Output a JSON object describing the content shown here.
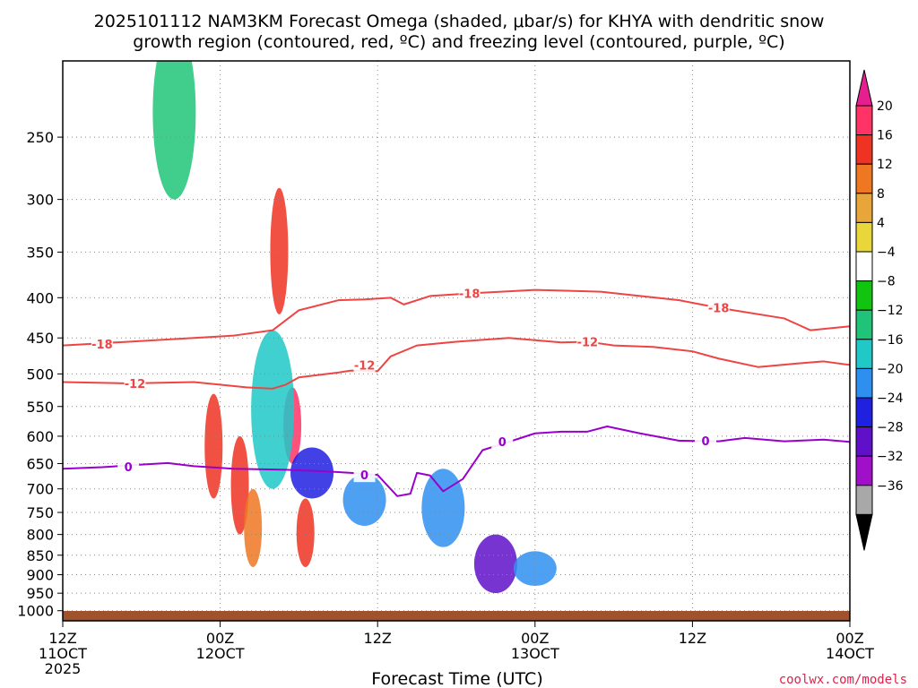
{
  "title": {
    "line1": "2025101112 NAM3KM Forecast Omega (shaded, μbar/s) for KHYA with dendritic snow",
    "line2": "growth region (contoured, red, ºC) and freezing level (contoured, purple, ºC)"
  },
  "credit": "coolwx.com/models",
  "colors": {
    "terrain": "#a0522d",
    "dgz_contour": "#ee4444",
    "freezing_contour": "#9900cc",
    "grid": "#888888"
  },
  "chart_data": {
    "type": "heatmap",
    "title": "2025101112 NAM3KM Forecast Omega (shaded, μbar/s) for KHYA with dendritic snow growth region (contoured, red, ºC) and freezing level (contoured, purple, ºC)",
    "xlabel": "Forecast Time (UTC)",
    "ylabel": "",
    "x_axis": {
      "hours_from_start": [
        0,
        12,
        24,
        36,
        48,
        60
      ],
      "tick_labels": [
        [
          "12Z",
          "11OCT",
          "2025"
        ],
        [
          "00Z",
          "12OCT"
        ],
        [
          "12Z"
        ],
        [
          "00Z",
          "13OCT"
        ],
        [
          "12Z"
        ],
        [
          "00Z",
          "14OCT"
        ]
      ],
      "range_hours": [
        0,
        60
      ]
    },
    "y_axis": {
      "unit": "hPa",
      "scale": "log-pressure",
      "range": [
        1030,
        200
      ],
      "ticks": [
        250,
        300,
        350,
        400,
        450,
        500,
        550,
        600,
        650,
        700,
        750,
        800,
        850,
        900,
        950,
        1000
      ]
    },
    "grid": true,
    "colorbar": {
      "levels": [
        20,
        16,
        12,
        8,
        4,
        -4,
        -8,
        -12,
        -16,
        -20,
        -24,
        -28,
        -32,
        -36
      ],
      "colors": [
        "#ff3366",
        "#ee3322",
        "#ee7722",
        "#e8a63a",
        "#e8d63a",
        "#ffffff",
        "#10c410",
        "#20c478",
        "#20c8c8",
        "#2e8ff0",
        "#2020e0",
        "#6010c8",
        "#a010c8",
        "#a8a8a8",
        "#000000"
      ],
      "ends": {
        "top": "#e61f8f",
        "bottom": "#000000"
      },
      "labels": [
        "20",
        "16",
        "12",
        "8",
        "4",
        "−4",
        "−8",
        "−12",
        "−16",
        "−20",
        "−24",
        "−28",
        "−32",
        "−36"
      ]
    },
    "contours": {
      "dgz_minus18": {
        "label": "-18",
        "points": [
          [
            0,
            460
          ],
          [
            2,
            458
          ],
          [
            5,
            455
          ],
          [
            10,
            450
          ],
          [
            13,
            447
          ],
          [
            16,
            440
          ],
          [
            18,
            415
          ],
          [
            21,
            403
          ],
          [
            23,
            402
          ],
          [
            25,
            400
          ],
          [
            26,
            408
          ],
          [
            28,
            398
          ],
          [
            31,
            395
          ],
          [
            36,
            391
          ],
          [
            41,
            393
          ],
          [
            47,
            403
          ],
          [
            50,
            412
          ],
          [
            55,
            425
          ],
          [
            57,
            440
          ],
          [
            60,
            435
          ]
        ],
        "label_positions": [
          [
            3,
            458
          ],
          [
            31,
            395
          ],
          [
            50,
            412
          ]
        ]
      },
      "dgz_minus12": {
        "label": "-12",
        "points": [
          [
            0,
            512
          ],
          [
            5,
            514
          ],
          [
            10,
            512
          ],
          [
            14,
            520
          ],
          [
            16,
            522
          ],
          [
            17,
            516
          ],
          [
            18,
            505
          ],
          [
            21,
            498
          ],
          [
            22,
            495
          ],
          [
            24,
            496
          ],
          [
            25,
            475
          ],
          [
            27,
            460
          ],
          [
            30,
            455
          ],
          [
            34,
            450
          ],
          [
            38,
            456
          ],
          [
            40,
            455
          ],
          [
            42,
            460
          ],
          [
            45,
            462
          ],
          [
            48,
            468
          ],
          [
            50,
            478
          ],
          [
            53,
            490
          ],
          [
            56,
            485
          ],
          [
            58,
            482
          ],
          [
            60,
            487
          ]
        ],
        "label_positions": [
          [
            5.5,
            514
          ],
          [
            23,
            487
          ],
          [
            40,
            455
          ]
        ]
      },
      "freezing_0": {
        "label": "0",
        "points": [
          [
            0,
            660
          ],
          [
            3,
            657
          ],
          [
            6,
            652
          ],
          [
            8,
            649
          ],
          [
            10,
            655
          ],
          [
            13,
            660
          ],
          [
            17,
            662
          ],
          [
            20,
            665
          ],
          [
            22,
            668
          ],
          [
            24,
            672
          ],
          [
            25.5,
            715
          ],
          [
            26.5,
            710
          ],
          [
            27,
            668
          ],
          [
            28,
            673
          ],
          [
            29,
            705
          ],
          [
            30.5,
            680
          ],
          [
            32,
            625
          ],
          [
            34,
            610
          ],
          [
            36,
            595
          ],
          [
            38,
            592
          ],
          [
            40,
            592
          ],
          [
            41.5,
            583
          ],
          [
            44,
            595
          ],
          [
            47,
            608
          ],
          [
            50,
            609
          ],
          [
            52,
            603
          ],
          [
            55,
            609
          ],
          [
            58,
            606
          ],
          [
            60,
            610
          ]
        ],
        "label_positions": [
          [
            5,
            656
          ],
          [
            23,
            672
          ],
          [
            33.5,
            610
          ],
          [
            49,
            608
          ]
        ]
      }
    },
    "omega_features": [
      {
        "hour": 11.5,
        "p_top": 530,
        "p_bottom": 720,
        "value": 12
      },
      {
        "hour": 13.5,
        "p_top": 600,
        "p_bottom": 800,
        "value": 12
      },
      {
        "hour": 14.5,
        "p_top": 700,
        "p_bottom": 880,
        "value": 8
      },
      {
        "hour": 16.5,
        "p_top": 290,
        "p_bottom": 420,
        "value": 12
      },
      {
        "hour": 17.5,
        "p_top": 520,
        "p_bottom": 650,
        "value": 16
      },
      {
        "hour": 18.5,
        "p_top": 720,
        "p_bottom": 880,
        "value": 12
      },
      {
        "hour": 16,
        "p_top": 440,
        "p_bottom": 700,
        "value": -20
      },
      {
        "hour": 19,
        "p_top": 620,
        "p_bottom": 720,
        "value": -28
      },
      {
        "hour": 23,
        "p_top": 670,
        "p_bottom": 780,
        "value": -24
      },
      {
        "hour": 29,
        "p_top": 660,
        "p_bottom": 830,
        "value": -24
      },
      {
        "hour": 33,
        "p_top": 800,
        "p_bottom": 950,
        "value": -32
      },
      {
        "hour": 36,
        "p_top": 840,
        "p_bottom": 930,
        "value": -24
      },
      {
        "hour": 8.5,
        "p_top": 180,
        "p_bottom": 300,
        "value": -16
      }
    ]
  }
}
